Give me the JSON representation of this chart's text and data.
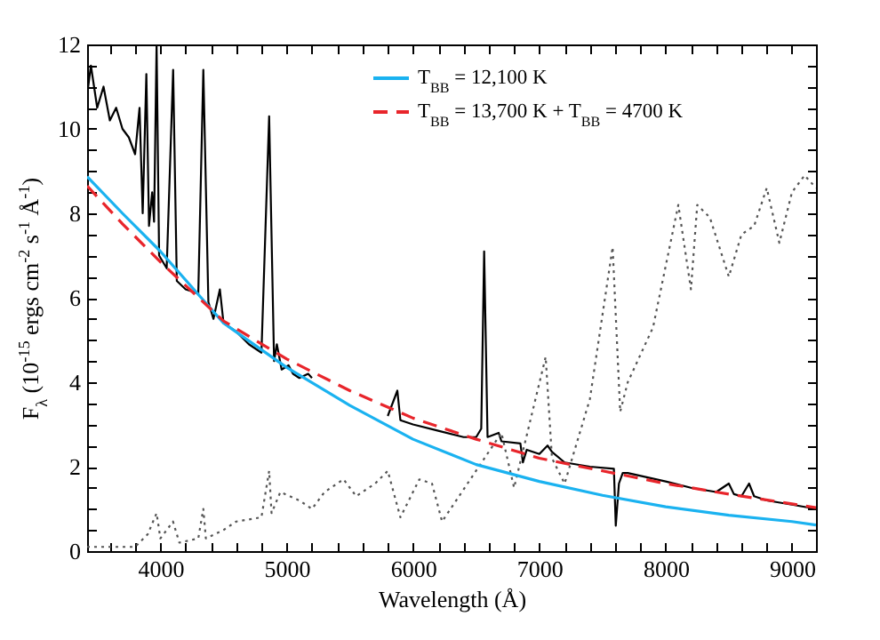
{
  "chart_data": {
    "type": "line",
    "xlabel": "Wavelength (Å)",
    "ylabel": "F$_{λ}$ (10$^{-15}$ ergs cm$^{-2}$ s$^{-1}$ Å$^{-1}$)",
    "xlim": [
      3420,
      9190
    ],
    "ylim": [
      0,
      12
    ],
    "xticks": [
      {
        "value": 3600,
        "label": null
      },
      {
        "value": 3800,
        "label": null
      },
      4000,
      {
        "value": 4200,
        "label": null
      },
      {
        "value": 4400,
        "label": null
      },
      {
        "value": 4600,
        "label": null
      },
      {
        "value": 4800,
        "label": null
      },
      5000,
      {
        "value": 5200,
        "label": null
      },
      {
        "value": 5400,
        "label": null
      },
      {
        "value": 5600,
        "label": null
      },
      {
        "value": 5800,
        "label": null
      },
      6000,
      {
        "value": 6200,
        "label": null
      },
      {
        "value": 6400,
        "label": null
      },
      {
        "value": 6600,
        "label": null
      },
      {
        "value": 6800,
        "label": null
      },
      7000,
      {
        "value": 7200,
        "label": null
      },
      {
        "value": 7400,
        "label": null
      },
      {
        "value": 7600,
        "label": null
      },
      {
        "value": 7800,
        "label": null
      },
      8000,
      {
        "value": 8200,
        "label": null
      },
      {
        "value": 8400,
        "label": null
      },
      {
        "value": 8600,
        "label": null
      },
      {
        "value": 8800,
        "label": null
      },
      9000
    ],
    "yticks": [
      0,
      {
        "value": 0.5,
        "label": null
      },
      {
        "value": 1,
        "label": null
      },
      {
        "value": 1.5,
        "label": null
      },
      2,
      {
        "value": 2.5,
        "label": null
      },
      {
        "value": 3,
        "label": null
      },
      {
        "value": 3.5,
        "label": null
      },
      4,
      {
        "value": 4.5,
        "label": null
      },
      {
        "value": 5,
        "label": null
      },
      {
        "value": 5.5,
        "label": null
      },
      6,
      {
        "value": 6.5,
        "label": null
      },
      {
        "value": 7,
        "label": null
      },
      {
        "value": 7.5,
        "label": null
      },
      8,
      {
        "value": 8.5,
        "label": null
      },
      {
        "value": 9,
        "label": null
      },
      {
        "value": 9.5,
        "label": null
      },
      10,
      {
        "value": 10.5,
        "label": null
      },
      {
        "value": 11,
        "label": null
      },
      {
        "value": 11.5,
        "label": null
      },
      12
    ],
    "legend": "top right",
    "grid": false,
    "series": [
      {
        "color": "#000000",
        "line_style": "solid",
        "x": [
          3420,
          3450,
          3500,
          3550,
          3600,
          3650,
          3700,
          3750,
          3800,
          3835,
          3860,
          3889,
          3910,
          3935,
          3950,
          3970,
          3990,
          4050,
          4101,
          4130,
          4200,
          4300,
          4340,
          4380,
          4420,
          4471,
          4500,
          4600,
          4700,
          4800,
          4861,
          4900,
          4922,
          4960,
          5015,
          5050,
          5100,
          5170,
          5200,
          5500,
          5800,
          5876,
          5900,
          6000,
          6200,
          6400,
          6500,
          6540,
          6563,
          6590,
          6678,
          6700,
          6850,
          6870,
          6900,
          7000,
          7065,
          7100,
          7200,
          7400,
          7590,
          7605,
          7630,
          7660,
          7700,
          8000,
          8200,
          8400,
          8500,
          8540,
          8600,
          8660,
          8700,
          8800,
          9000,
          9190
        ],
        "values": [
          10.8,
          11.5,
          10.5,
          11.0,
          10.2,
          10.5,
          10.0,
          9.8,
          9.4,
          10.5,
          8.0,
          11.3,
          7.7,
          8.5,
          7.8,
          12,
          7.0,
          6.7,
          11.4,
          6.4,
          6.2,
          6.1,
          11.4,
          5.9,
          5.5,
          6.2,
          5.4,
          5.2,
          4.9,
          4.7,
          10.3,
          4.5,
          4.9,
          4.3,
          4.4,
          4.2,
          4.1,
          4.2,
          4.1,
          null,
          3.2,
          3.8,
          3.1,
          3.0,
          2.85,
          2.7,
          2.7,
          2.9,
          7.1,
          2.7,
          2.8,
          2.6,
          2.55,
          2.1,
          2.4,
          2.3,
          2.5,
          2.35,
          2.1,
          2.0,
          1.95,
          0.6,
          1.6,
          1.85,
          1.85,
          1.65,
          1.5,
          1.4,
          1.6,
          1.35,
          1.3,
          1.6,
          1.3,
          1.2,
          1.1,
          1.0
        ]
      },
      {
        "color": "#555555",
        "line_style": "dotted",
        "x": [
          3420,
          3800,
          3900,
          3970,
          4000,
          4100,
          4150,
          4300,
          4340,
          4360,
          4500,
          4600,
          4700,
          4800,
          4861,
          4880,
          4950,
          5100,
          5200,
          5300,
          5450,
          5550,
          5700,
          5800,
          5900,
          6050,
          6150,
          6230,
          6700,
          6800,
          7050,
          7100,
          7200,
          7400,
          7580,
          7640,
          7700,
          7900,
          8100,
          8200,
          8250,
          8350,
          8500,
          8600,
          8700,
          8800,
          8900,
          9000,
          9100,
          9190
        ],
        "values": [
          0.1,
          0.1,
          0.4,
          0.9,
          0.3,
          0.7,
          0.2,
          0.3,
          1.0,
          0.3,
          0.5,
          0.7,
          0.75,
          0.8,
          1.9,
          0.9,
          1.4,
          1.2,
          1.0,
          1.4,
          1.7,
          1.3,
          1.6,
          1.9,
          0.8,
          1.7,
          1.6,
          0.7,
          2.8,
          1.5,
          4.6,
          2.2,
          1.6,
          3.6,
          7.2,
          3.3,
          4.0,
          5.3,
          8.2,
          6.2,
          8.2,
          7.9,
          6.5,
          7.5,
          7.7,
          8.6,
          7.3,
          8.5,
          8.9,
          8.6
        ]
      },
      {
        "name": "T$_{BB}$ = 12,100 K",
        "color": "#1ab2f0",
        "line_style": "solid",
        "x": [
          3420,
          3700,
          4000,
          4500,
          5000,
          5500,
          6000,
          6500,
          7000,
          7500,
          8000,
          8500,
          9000,
          9190
        ],
        "values": [
          8.87,
          8.0,
          7.1,
          5.4,
          4.35,
          3.45,
          2.65,
          2.05,
          1.65,
          1.32,
          1.05,
          0.85,
          0.7,
          0.62
        ]
      },
      {
        "name": "T$_{BB}$ = 13,700 K + T$_{BB}$ = 4700 K",
        "color": "#e8252b",
        "line_style": "dashed",
        "x": [
          3420,
          3700,
          4000,
          4500,
          5000,
          5500,
          6000,
          6500,
          7000,
          7500,
          8000,
          8500,
          9000,
          9190
        ],
        "values": [
          8.65,
          7.75,
          6.85,
          5.45,
          4.55,
          3.8,
          3.15,
          2.65,
          2.2,
          1.9,
          1.6,
          1.35,
          1.12,
          1.03
        ]
      }
    ]
  }
}
